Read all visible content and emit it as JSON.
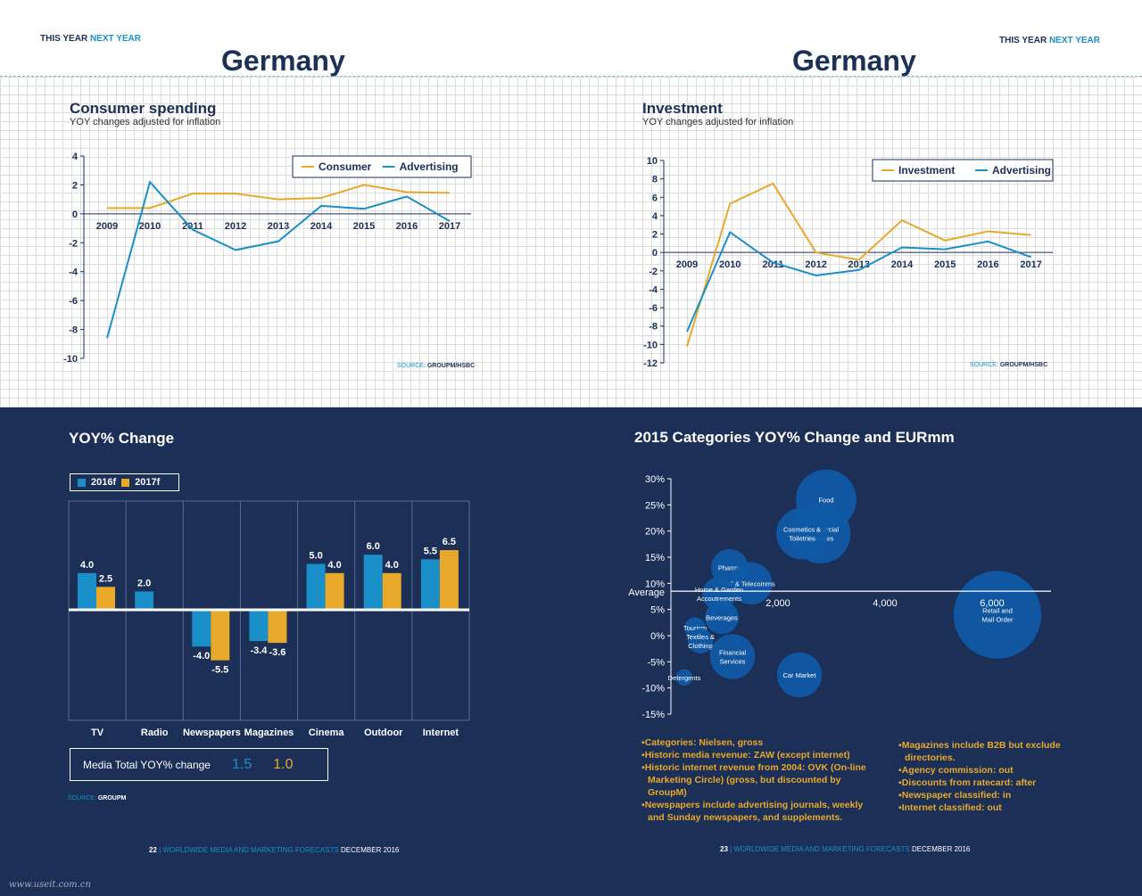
{
  "page_left": {
    "header": {
      "this_year": "THIS YEAR",
      "next_year": "NEXT YEAR"
    },
    "country": "Germany",
    "footer": {
      "page": "22",
      "sep": " | ",
      "pub": "WORLDWIDE MEDIA AND MARKETING FORECASTS",
      "date": " DECEMBER 2016"
    }
  },
  "page_right": {
    "header": {
      "this_year": "THIS YEAR",
      "next_year": "NEXT YEAR"
    },
    "country": "Germany",
    "footer": {
      "page": "23",
      "sep": " | ",
      "pub": "WORLDWIDE MEDIA AND MARKETING FORECASTS",
      "date": " DECEMBER 2016"
    }
  },
  "source_prefix": "SOURCE: ",
  "watermark": "www.useit.com.cn",
  "colors": {
    "navy": "#1b2f57",
    "blue": "#1a8fc8",
    "gold": "#e8a92b"
  },
  "chart_data": [
    {
      "id": "consumer",
      "type": "line",
      "title": "Consumer spending",
      "subtitle": "YOY changes adjusted for inflation",
      "source": "GROUPM/HSBC",
      "x": [
        "2009",
        "2010",
        "2011",
        "2012",
        "2013",
        "2014",
        "2015",
        "2016",
        "2017"
      ],
      "ylim": [
        -10,
        4
      ],
      "yticks": [
        "4",
        "2",
        "0",
        "-2",
        "-4",
        "-6",
        "-8",
        "-10"
      ],
      "series": [
        {
          "name": "Consumer",
          "color": "#e8a92b",
          "values": [
            0.4,
            0.4,
            1.4,
            1.4,
            1.0,
            1.1,
            2.0,
            1.5,
            1.45
          ]
        },
        {
          "name": "Advertising",
          "color": "#1a8fc8",
          "values": [
            -8.6,
            2.2,
            -1.1,
            -2.5,
            -1.9,
            0.55,
            0.35,
            1.2,
            -0.5
          ]
        }
      ],
      "legend": "top-right"
    },
    {
      "id": "investment",
      "type": "line",
      "title": "Investment",
      "subtitle": "YOY changes adjusted for inflation",
      "source": "GROUPM/HSBC",
      "x": [
        "2009",
        "2010",
        "2011",
        "2012",
        "2013",
        "2014",
        "2015",
        "2016",
        "2017"
      ],
      "ylim": [
        -12,
        10
      ],
      "yticks": [
        "10",
        "8",
        "6",
        "4",
        "2",
        "0",
        "-2",
        "-4",
        "-6",
        "-8",
        "-10",
        "-12"
      ],
      "series": [
        {
          "name": "Investment",
          "color": "#e8a92b",
          "values": [
            -10.2,
            5.3,
            7.5,
            0.0,
            -0.8,
            3.5,
            1.3,
            2.3,
            1.9
          ]
        },
        {
          "name": "Advertising",
          "color": "#1a8fc8",
          "values": [
            -8.6,
            2.2,
            -1.1,
            -2.5,
            -1.9,
            0.55,
            0.35,
            1.2,
            -0.5
          ]
        }
      ],
      "legend": "top-right"
    },
    {
      "id": "yoy",
      "type": "bar",
      "title": "YOY% Change",
      "source": "GROUPM",
      "categories": [
        "TV",
        "Radio",
        "Newspapers",
        "Magazines",
        "Cinema",
        "Outdoor",
        "Internet"
      ],
      "series": [
        {
          "name": "2016f",
          "color": "#1a8fc8",
          "values": [
            4.0,
            2.0,
            -4.0,
            -3.4,
            5.0,
            6.0,
            5.5
          ],
          "labels": [
            "4.0",
            "2.0",
            "-4.0",
            "-3.4",
            "5.0",
            "6.0",
            "5.5"
          ]
        },
        {
          "name": "2017f",
          "color": "#e8a92b",
          "values": [
            2.5,
            null,
            -5.5,
            -3.6,
            4.0,
            4.0,
            6.5
          ],
          "labels": [
            "2.5",
            "",
            "-5.5",
            "-3.6",
            "4.0",
            "4.0",
            "6.5"
          ]
        }
      ],
      "total": {
        "label": "Media Total YOY% change",
        "v2016": "1.5",
        "v2017": "1.0"
      },
      "legend": "top-left"
    },
    {
      "id": "categories",
      "type": "scatter",
      "title": "2015 Categories YOY% Change and EURmm",
      "ylim": [
        -15,
        30
      ],
      "yticks": [
        "30%",
        "25%",
        "20%",
        "15%",
        "10%",
        "5%",
        "0%",
        "-5%",
        "-10%",
        "-15%"
      ],
      "xticks": [
        "2,000",
        "4,000",
        "6,000"
      ],
      "xlim": [
        0,
        7000
      ],
      "average_label": "Average",
      "average_value": 8.5,
      "points": [
        {
          "label": [
            "Food"
          ],
          "x": 2900,
          "y": 26,
          "size": 2900
        },
        {
          "label": [
            "Commercial",
            "Services"
          ],
          "x": 2800,
          "y": 19.5,
          "size": 2800
        },
        {
          "label": [
            "Cosmetics &",
            "Toiletries"
          ],
          "x": 2450,
          "y": 19.5,
          "size": 2100
        },
        {
          "label": [
            "Pharma"
          ],
          "x": 1100,
          "y": 13,
          "size": 1100
        },
        {
          "label": [
            "IT & Telecomms"
          ],
          "x": 1500,
          "y": 10,
          "size": 1400
        },
        {
          "label": [
            "Home & Garden",
            "Accoutrements"
          ],
          "x": 900,
          "y": 8,
          "size": 900
        },
        {
          "label": [
            "Beverages"
          ],
          "x": 950,
          "y": 3.5,
          "size": 900
        },
        {
          "label": [
            "Tourism"
          ],
          "x": 450,
          "y": 1.5,
          "size": 350
        },
        {
          "label": [
            "Textiles &",
            "Clothing"
          ],
          "x": 550,
          "y": -1,
          "size": 500
        },
        {
          "label": [
            "Financial",
            "Services"
          ],
          "x": 1150,
          "y": -4,
          "size": 1600
        },
        {
          "label": [
            "Detergents"
          ],
          "x": 250,
          "y": -8,
          "size": 220
        },
        {
          "label": [
            "Car Market"
          ],
          "x": 2400,
          "y": -7.5,
          "size": 1600
        },
        {
          "label": [
            "Retail and",
            "Mail Order"
          ],
          "x": 6100,
          "y": 4,
          "size": 6100
        }
      ]
    }
  ],
  "notes_left": [
    "Categories: Nielsen, gross",
    "Historic media revenue: ZAW (except internet)",
    "Historic internet revenue from 2004: OVK (On-line Marketing Circle) (gross, but discounted by GroupM)",
    "Newspapers include advertising journals, weekly and Sunday newspapers, and supplements."
  ],
  "notes_right": [
    "Magazines include B2B but exclude directories.",
    "Agency commission: out",
    "Discounts from ratecard: after",
    "Newspaper classified: in",
    "Internet classified: out"
  ]
}
